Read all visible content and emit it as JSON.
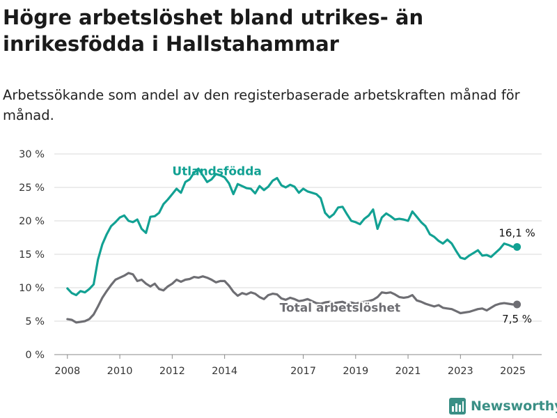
{
  "title": "Högre arbetslöshet bland utrikes- än inrikesfödda i Hallstahammar",
  "subtitle": "Arbetssökande som andel av den registerbaserade arbetskraften månad för månad.",
  "brand": "Newsworthy",
  "colors": {
    "utlandsfodda": "#12a193",
    "total": "#6e6e73",
    "grid": "#d9d9d9",
    "brand": "#3a8f85"
  },
  "chart_data": {
    "type": "line",
    "x_tick_labels": [
      "2008",
      "2010",
      "2012",
      "2014",
      "2017",
      "2019",
      "2021",
      "2023",
      "2025"
    ],
    "y_ticks": [
      0,
      5,
      10,
      15,
      20,
      25,
      30
    ],
    "y_tick_labels": [
      "0 %",
      "5 %",
      "10 %",
      "15 %",
      "20 %",
      "25 %",
      "30 %"
    ],
    "ylim": [
      0,
      30
    ],
    "grid": true,
    "series": [
      {
        "name": "Utlandsfödda",
        "color": "#12a193",
        "end_label": "16,1 %",
        "points": [
          [
            "2008-01",
            9.9
          ],
          [
            "2008-03",
            9.2
          ],
          [
            "2008-05",
            8.9
          ],
          [
            "2008-07",
            9.5
          ],
          [
            "2008-09",
            9.3
          ],
          [
            "2008-11",
            9.8
          ],
          [
            "2009-01",
            10.5
          ],
          [
            "2009-03",
            14.2
          ],
          [
            "2009-05",
            16.5
          ],
          [
            "2009-07",
            18.0
          ],
          [
            "2009-09",
            19.2
          ],
          [
            "2009-11",
            19.8
          ],
          [
            "2010-01",
            20.5
          ],
          [
            "2010-03",
            20.8
          ],
          [
            "2010-05",
            20.0
          ],
          [
            "2010-07",
            19.8
          ],
          [
            "2010-09",
            20.2
          ],
          [
            "2010-11",
            18.8
          ],
          [
            "2011-01",
            18.2
          ],
          [
            "2011-03",
            20.6
          ],
          [
            "2011-05",
            20.7
          ],
          [
            "2011-07",
            21.2
          ],
          [
            "2011-09",
            22.5
          ],
          [
            "2011-11",
            23.2
          ],
          [
            "2012-01",
            24.0
          ],
          [
            "2012-03",
            24.8
          ],
          [
            "2012-05",
            24.2
          ],
          [
            "2012-07",
            25.8
          ],
          [
            "2012-09",
            26.2
          ],
          [
            "2012-11",
            27.2
          ],
          [
            "2013-01",
            27.8
          ],
          [
            "2013-03",
            26.8
          ],
          [
            "2013-05",
            25.8
          ],
          [
            "2013-07",
            26.2
          ],
          [
            "2013-09",
            27.0
          ],
          [
            "2013-11",
            26.8
          ],
          [
            "2014-01",
            26.5
          ],
          [
            "2014-03",
            25.6
          ],
          [
            "2014-05",
            24.0
          ],
          [
            "2014-07",
            25.5
          ],
          [
            "2014-09",
            25.2
          ],
          [
            "2014-11",
            24.9
          ],
          [
            "2015-01",
            24.8
          ],
          [
            "2015-03",
            24.1
          ],
          [
            "2015-05",
            25.2
          ],
          [
            "2015-07",
            24.6
          ],
          [
            "2015-09",
            25.1
          ],
          [
            "2015-11",
            26.0
          ],
          [
            "2016-01",
            26.4
          ],
          [
            "2016-03",
            25.3
          ],
          [
            "2016-05",
            25.0
          ],
          [
            "2016-07",
            25.4
          ],
          [
            "2016-09",
            25.1
          ],
          [
            "2016-11",
            24.2
          ],
          [
            "2017-01",
            24.8
          ],
          [
            "2017-03",
            24.4
          ],
          [
            "2017-05",
            24.2
          ],
          [
            "2017-07",
            24.0
          ],
          [
            "2017-09",
            23.4
          ],
          [
            "2017-11",
            21.2
          ],
          [
            "2018-01",
            20.5
          ],
          [
            "2018-03",
            21.0
          ],
          [
            "2018-05",
            22.0
          ],
          [
            "2018-07",
            22.1
          ],
          [
            "2018-09",
            21.0
          ],
          [
            "2018-11",
            20.0
          ],
          [
            "2019-01",
            19.8
          ],
          [
            "2019-03",
            19.5
          ],
          [
            "2019-05",
            20.3
          ],
          [
            "2019-07",
            20.8
          ],
          [
            "2019-09",
            21.7
          ],
          [
            "2019-11",
            18.8
          ],
          [
            "2020-01",
            20.5
          ],
          [
            "2020-03",
            21.1
          ],
          [
            "2020-05",
            20.7
          ],
          [
            "2020-07",
            20.2
          ],
          [
            "2020-09",
            20.3
          ],
          [
            "2020-11",
            20.2
          ],
          [
            "2021-01",
            20.0
          ],
          [
            "2021-03",
            21.4
          ],
          [
            "2021-05",
            20.6
          ],
          [
            "2021-07",
            19.8
          ],
          [
            "2021-09",
            19.2
          ],
          [
            "2021-11",
            18.0
          ],
          [
            "2022-01",
            17.6
          ],
          [
            "2022-03",
            17.0
          ],
          [
            "2022-05",
            16.6
          ],
          [
            "2022-07",
            17.2
          ],
          [
            "2022-09",
            16.6
          ],
          [
            "2022-11",
            15.5
          ],
          [
            "2023-01",
            14.5
          ],
          [
            "2023-03",
            14.3
          ],
          [
            "2023-05",
            14.8
          ],
          [
            "2023-07",
            15.2
          ],
          [
            "2023-09",
            15.6
          ],
          [
            "2023-11",
            14.8
          ],
          [
            "2024-01",
            14.9
          ],
          [
            "2024-03",
            14.6
          ],
          [
            "2024-05",
            15.2
          ],
          [
            "2024-07",
            15.8
          ],
          [
            "2024-09",
            16.6
          ],
          [
            "2024-11",
            16.4
          ],
          [
            "2025-01",
            16.1
          ]
        ]
      },
      {
        "name": "Total arbetslöshet",
        "color": "#6e6e73",
        "end_label": "7,5 %",
        "points": [
          [
            "2008-01",
            5.3
          ],
          [
            "2008-03",
            5.2
          ],
          [
            "2008-05",
            4.8
          ],
          [
            "2008-07",
            4.9
          ],
          [
            "2008-09",
            5.0
          ],
          [
            "2008-11",
            5.3
          ],
          [
            "2009-01",
            6.0
          ],
          [
            "2009-03",
            7.2
          ],
          [
            "2009-05",
            8.5
          ],
          [
            "2009-07",
            9.5
          ],
          [
            "2009-09",
            10.4
          ],
          [
            "2009-11",
            11.2
          ],
          [
            "2010-01",
            11.5
          ],
          [
            "2010-03",
            11.8
          ],
          [
            "2010-05",
            12.2
          ],
          [
            "2010-07",
            12.0
          ],
          [
            "2010-09",
            11.0
          ],
          [
            "2010-11",
            11.2
          ],
          [
            "2011-01",
            10.6
          ],
          [
            "2011-03",
            10.2
          ],
          [
            "2011-05",
            10.6
          ],
          [
            "2011-07",
            9.8
          ],
          [
            "2011-09",
            9.6
          ],
          [
            "2011-11",
            10.2
          ],
          [
            "2012-01",
            10.6
          ],
          [
            "2012-03",
            11.2
          ],
          [
            "2012-05",
            10.9
          ],
          [
            "2012-07",
            11.2
          ],
          [
            "2012-09",
            11.3
          ],
          [
            "2012-11",
            11.6
          ],
          [
            "2013-01",
            11.5
          ],
          [
            "2013-03",
            11.7
          ],
          [
            "2013-05",
            11.5
          ],
          [
            "2013-07",
            11.2
          ],
          [
            "2013-09",
            10.8
          ],
          [
            "2013-11",
            11.0
          ],
          [
            "2014-01",
            11.0
          ],
          [
            "2014-03",
            10.3
          ],
          [
            "2014-05",
            9.4
          ],
          [
            "2014-07",
            8.8
          ],
          [
            "2014-09",
            9.2
          ],
          [
            "2014-11",
            9.0
          ],
          [
            "2015-01",
            9.3
          ],
          [
            "2015-03",
            9.1
          ],
          [
            "2015-05",
            8.6
          ],
          [
            "2015-07",
            8.3
          ],
          [
            "2015-09",
            8.9
          ],
          [
            "2015-11",
            9.1
          ],
          [
            "2016-01",
            9.0
          ],
          [
            "2016-03",
            8.4
          ],
          [
            "2016-05",
            8.2
          ],
          [
            "2016-07",
            8.5
          ],
          [
            "2016-09",
            8.3
          ],
          [
            "2016-11",
            8.0
          ],
          [
            "2017-01",
            8.1
          ],
          [
            "2017-03",
            8.3
          ],
          [
            "2017-05",
            8.0
          ],
          [
            "2017-07",
            7.7
          ],
          [
            "2017-09",
            7.6
          ],
          [
            "2017-11",
            7.8
          ],
          [
            "2018-01",
            7.9
          ],
          [
            "2018-03",
            7.7
          ],
          [
            "2018-05",
            7.8
          ],
          [
            "2018-07",
            7.9
          ],
          [
            "2018-09",
            7.6
          ],
          [
            "2018-11",
            7.8
          ],
          [
            "2019-01",
            7.6
          ],
          [
            "2019-03",
            7.8
          ],
          [
            "2019-05",
            7.9
          ],
          [
            "2019-07",
            8.0
          ],
          [
            "2019-09",
            8.2
          ],
          [
            "2019-11",
            8.6
          ],
          [
            "2020-01",
            9.3
          ],
          [
            "2020-03",
            9.2
          ],
          [
            "2020-05",
            9.3
          ],
          [
            "2020-07",
            9.0
          ],
          [
            "2020-09",
            8.6
          ],
          [
            "2020-11",
            8.5
          ],
          [
            "2021-01",
            8.6
          ],
          [
            "2021-03",
            8.9
          ],
          [
            "2021-05",
            8.1
          ],
          [
            "2021-07",
            7.9
          ],
          [
            "2021-09",
            7.6
          ],
          [
            "2021-11",
            7.4
          ],
          [
            "2022-01",
            7.2
          ],
          [
            "2022-03",
            7.4
          ],
          [
            "2022-05",
            7.0
          ],
          [
            "2022-07",
            6.9
          ],
          [
            "2022-09",
            6.8
          ],
          [
            "2022-11",
            6.5
          ],
          [
            "2023-01",
            6.2
          ],
          [
            "2023-03",
            6.3
          ],
          [
            "2023-05",
            6.4
          ],
          [
            "2023-07",
            6.6
          ],
          [
            "2023-09",
            6.8
          ],
          [
            "2023-11",
            6.9
          ],
          [
            "2024-01",
            6.6
          ],
          [
            "2024-03",
            7.0
          ],
          [
            "2024-05",
            7.4
          ],
          [
            "2024-07",
            7.6
          ],
          [
            "2024-09",
            7.7
          ],
          [
            "2024-11",
            7.6
          ],
          [
            "2025-01",
            7.5
          ]
        ]
      }
    ]
  }
}
